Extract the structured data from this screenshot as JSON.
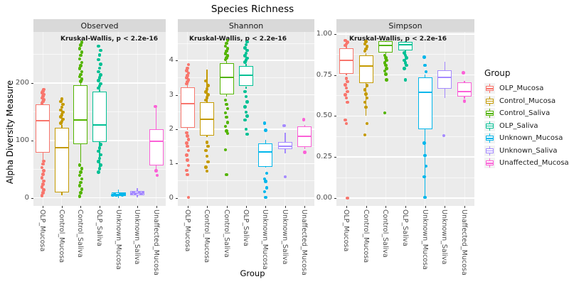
{
  "chart_data": {
    "type": "boxplot",
    "title": "Species Richness",
    "xlabel": "Group",
    "ylabel": "Alpha Diversity Measure",
    "legend_title": "Group",
    "annotation": "Kruskal-Wallis, p < 2.2e-16",
    "legend_position": "right",
    "categories": [
      "OLP_Mucosa",
      "Control_Mucosa",
      "Control_Saliva",
      "OLP_Saliva",
      "Unknown_Mucosa",
      "Unknown_Saliva",
      "Unaffected_Mucosa"
    ],
    "group_colors": {
      "OLP_Mucosa": "#F8766D",
      "Control_Mucosa": "#C49A00",
      "Control_Saliva": "#53B400",
      "OLP_Saliva": "#00C094",
      "Unknown_Mucosa": "#00B6EB",
      "Unknown_Saliva": "#A58AFF",
      "Unaffected_Mucosa": "#FB61D7"
    },
    "panel_bg": "#EBEBEB",
    "strip_bg": "#D9D9D9",
    "facets": [
      {
        "label": "Observed",
        "ylim": [
          -14,
          289
        ],
        "ticks": [
          [
            0,
            "0"
          ],
          [
            100,
            "100"
          ],
          [
            200,
            "200"
          ]
        ],
        "minor": [
          50,
          150,
          250
        ],
        "ann_x": 38,
        "boxes": [
          {
            "group": "OLP_Mucosa",
            "low": 66,
            "q1": 79,
            "median": 134,
            "q3": 163,
            "high": 185,
            "points": [
              4,
              9,
              14,
              19,
              24,
              29,
              35,
              41,
              47,
              53,
              59,
              64,
              165,
              168,
              171,
              174,
              177,
              180,
              183,
              186,
              189
            ]
          },
          {
            "group": "Control_Mucosa",
            "low": 4,
            "q1": 10,
            "median": 88,
            "q3": 122,
            "high": 127,
            "points": [
              130,
              133,
              137,
              141,
              145,
              149,
              153,
              158,
              163,
              168,
              172
            ]
          },
          {
            "group": "Control_Saliva",
            "low": 62,
            "q1": 93,
            "median": 136,
            "q3": 196,
            "high": 201,
            "points": [
              3,
              9,
              15,
              21,
              27,
              33,
              39,
              45,
              51,
              57,
              203,
              207,
              211,
              215,
              220,
              225,
              230,
              236,
              242,
              248,
              254,
              260,
              266,
              271
            ]
          },
          {
            "group": "OLP_Saliva",
            "low": 48,
            "q1": 97,
            "median": 127,
            "q3": 185,
            "high": 189,
            "points": [
              45,
              51,
              57,
              63,
              69,
              75,
              81,
              87,
              93,
              191,
              195,
              199,
              204,
              209,
              214,
              220,
              226,
              233,
              241,
              249,
              257,
              264
            ]
          },
          {
            "group": "Unknown_Mucosa",
            "low": 0,
            "q1": 3,
            "median": 5.5,
            "q3": 9,
            "high": 14,
            "spread": true,
            "points": []
          },
          {
            "group": "Unknown_Saliva",
            "low": 1,
            "q1": 5,
            "median": 8,
            "q3": 12,
            "high": 17,
            "spread": true,
            "points": []
          },
          {
            "group": "Unaffected_Mucosa",
            "low": 50,
            "q1": 57,
            "median": 99,
            "q3": 119,
            "high": 157,
            "points": [
              159,
              47,
              39
            ]
          }
        ]
      },
      {
        "label": "Shannon",
        "ylim": [
          -0.23,
          4.83
        ],
        "ticks": [
          [
            0,
            "0"
          ],
          [
            1,
            "1"
          ],
          [
            2,
            "2"
          ],
          [
            3,
            "3"
          ],
          [
            4,
            "4"
          ]
        ],
        "minor": [
          0.5,
          1.5,
          2.5,
          3.5,
          4.5
        ],
        "ann_x": 16,
        "boxes": [
          {
            "group": "OLP_Mucosa",
            "low": 1.98,
            "q1": 2.05,
            "median": 2.75,
            "q3": 3.22,
            "high": 3.28,
            "points": [
              3.32,
              3.38,
              3.44,
              3.5,
              3.56,
              3.63,
              3.7,
              3.78,
              3.88,
              1.9,
              1.8,
              1.7,
              1.6,
              1.5,
              1.38,
              1.25,
              1.1,
              0.95,
              0.8,
              0.68,
              0.02
            ]
          },
          {
            "group": "Control_Mucosa",
            "low": 1.78,
            "q1": 1.82,
            "median": 2.28,
            "q3": 2.78,
            "high": 3.73,
            "points": [
              2.85,
              2.92,
              3.0,
              3.08,
              3.17,
              3.27,
              3.4,
              1.62,
              1.5,
              1.38,
              1.22,
              1.05,
              0.9,
              0.78
            ]
          },
          {
            "group": "Control_Saliva",
            "low": 2.95,
            "q1": 3.02,
            "median": 3.5,
            "q3": 3.93,
            "high": 3.98,
            "points": [
              4.02,
              4.08,
              4.14,
              4.2,
              4.27,
              4.34,
              4.42,
              4.5,
              4.58,
              2.85,
              2.72,
              2.6,
              2.48,
              2.35,
              2.2,
              2.08,
              1.95,
              1.88,
              1.4,
              0.68
            ]
          },
          {
            "group": "OLP_Saliva",
            "low": 3.18,
            "q1": 3.25,
            "median": 3.56,
            "q3": 3.84,
            "high": 3.9,
            "points": [
              3.95,
              4.01,
              4.07,
              4.14,
              4.21,
              4.29,
              4.37,
              4.46,
              4.54,
              3.1,
              2.95,
              2.8,
              2.65,
              2.5,
              2.38,
              2.27,
              2.0,
              1.86
            ]
          },
          {
            "group": "Unknown_Mucosa",
            "low": 0.88,
            "q1": 0.9,
            "median": 1.33,
            "q3": 1.58,
            "high": 1.7,
            "points": [
              2.18,
              1.97,
              0.72,
              0.55,
              0.48,
              0.3,
              0.18,
              0.02
            ]
          },
          {
            "group": "Unknown_Saliva",
            "low": 1.3,
            "q1": 1.42,
            "median": 1.5,
            "q3": 1.62,
            "high": 1.9,
            "points": [
              2.1,
              0.62
            ]
          },
          {
            "group": "Unaffected_Mucosa",
            "low": 1.42,
            "q1": 1.48,
            "median": 1.8,
            "q3": 2.08,
            "high": 2.12,
            "points": [
              2.28,
              1.33
            ]
          }
        ]
      },
      {
        "label": "Simpson",
        "ylim": [
          -0.048,
          1.013
        ],
        "ticks": [
          [
            0,
            "0.00"
          ],
          [
            0.25,
            "0.25"
          ],
          [
            0.5,
            "0.50"
          ],
          [
            0.75,
            "0.75"
          ],
          [
            1,
            "1.00"
          ]
        ],
        "minor": [
          0.125,
          0.375,
          0.625,
          0.875
        ],
        "ann_x": 18,
        "boxes": [
          {
            "group": "OLP_Mucosa",
            "low": 0.75,
            "q1": 0.758,
            "median": 0.84,
            "q3": 0.912,
            "high": 0.925,
            "points": [
              0.93,
              0.94,
              0.95,
              0.96,
              0.73,
              0.71,
              0.69,
              0.67,
              0.65,
              0.63,
              0.61,
              0.585,
              0.475,
              0.455,
              0.0
            ]
          },
          {
            "group": "Control_Mucosa",
            "low": 0.5,
            "q1": 0.7,
            "median": 0.805,
            "q3": 0.872,
            "high": 0.885,
            "points": [
              0.895,
              0.91,
              0.925,
              0.94,
              0.955,
              0.685,
              0.66,
              0.635,
              0.61,
              0.585,
              0.555,
              0.455,
              0.385
            ]
          },
          {
            "group": "Control_Saliva",
            "low": 0.88,
            "q1": 0.887,
            "median": 0.93,
            "q3": 0.955,
            "high": 0.962,
            "points": [
              0.87,
              0.855,
              0.84,
              0.825,
              0.81,
              0.79,
              0.775,
              0.755,
              0.72,
              0.52
            ]
          },
          {
            "group": "OLP_Saliva",
            "low": 0.893,
            "q1": 0.9,
            "median": 0.935,
            "q3": 0.952,
            "high": 0.958,
            "points": [
              0.885,
              0.87,
              0.855,
              0.84,
              0.825,
              0.81,
              0.79,
              0.72
            ]
          },
          {
            "group": "Unknown_Mucosa",
            "low": 0.0,
            "q1": 0.42,
            "median": 0.645,
            "q3": 0.735,
            "high": 0.755,
            "points": [
              0.86,
              0.81,
              0.77,
              0.335,
              0.26,
              0.195,
              0.13,
              0.005
            ]
          },
          {
            "group": "Unknown_Saliva",
            "low": 0.61,
            "q1": 0.665,
            "median": 0.735,
            "q3": 0.78,
            "high": 0.83,
            "points": [
              0.38
            ]
          },
          {
            "group": "Unaffected_Mucosa",
            "low": 0.605,
            "q1": 0.62,
            "median": 0.65,
            "q3": 0.705,
            "high": 0.715,
            "points": [
              0.765,
              0.59
            ]
          }
        ]
      }
    ]
  }
}
